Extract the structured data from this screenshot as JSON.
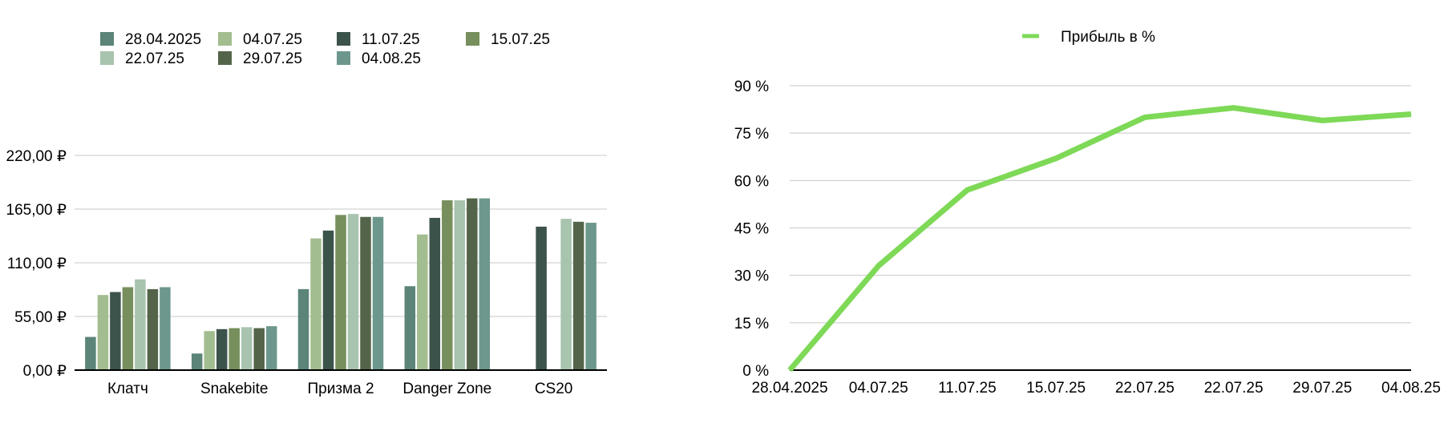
{
  "chart_data": [
    {
      "type": "bar",
      "categories": [
        "Клатч",
        "Snakebite",
        "Призма 2",
        "Danger Zone",
        "CS20"
      ],
      "yticks": [
        "0,00 ₽",
        "55,00 ₽",
        "110,00 ₽",
        "165,00 ₽",
        "220,00 ₽"
      ],
      "ylim": [
        0,
        220
      ],
      "grid": true,
      "legend_position": "top-left",
      "series": [
        {
          "name": "28.04.2025",
          "color": "#5c8478",
          "values": [
            34,
            17,
            83,
            86,
            null
          ]
        },
        {
          "name": "04.07.25",
          "color": "#a2bd8f",
          "values": [
            77,
            40,
            135,
            139,
            null
          ]
        },
        {
          "name": "11.07.25",
          "color": "#3c534b",
          "values": [
            80,
            42,
            143,
            156,
            147
          ]
        },
        {
          "name": "15.07.25",
          "color": "#778f5c",
          "values": [
            85,
            43,
            159,
            174,
            null
          ]
        },
        {
          "name": "22.07.25",
          "color": "#a8c3ae",
          "values": [
            93,
            44,
            160,
            174,
            155
          ]
        },
        {
          "name": "29.07.25",
          "color": "#54644a",
          "values": [
            83,
            43,
            157,
            176,
            152
          ]
        },
        {
          "name": "04.08.25",
          "color": "#6d978d",
          "values": [
            85,
            45,
            157,
            176,
            151
          ]
        }
      ]
    },
    {
      "type": "line",
      "x": [
        "28.04.2025",
        "04.07.25",
        "11.07.25",
        "15.07.25",
        "22.07.25",
        "22.07.25",
        "29.07.25",
        "04.08.25"
      ],
      "yticks": [
        "0 %",
        "15 %",
        "30 %",
        "45 %",
        "60 %",
        "75 %",
        "90 %"
      ],
      "ylim": [
        0,
        90
      ],
      "grid": true,
      "legend_position": "top-center",
      "series": [
        {
          "name": "Прибыль в %",
          "color": "#7ed957",
          "values": [
            0,
            33,
            57,
            67,
            80,
            83,
            79,
            81
          ]
        }
      ]
    }
  ]
}
